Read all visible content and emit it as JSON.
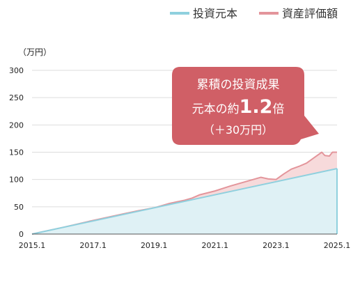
{
  "colors": {
    "principal_line": "#8fd0de",
    "principal_fill": "#dff1f5",
    "value_line": "#e3959b",
    "value_fill": "#f7dadb",
    "callout_bg": "#d05f66",
    "grid": "#dddddd",
    "axis": "#555555"
  },
  "chart_data": {
    "type": "area",
    "unit_label": "（万円）",
    "legend_placement": "top-right",
    "xlim": [
      2015.0,
      2025.0
    ],
    "ylim": [
      0,
      300
    ],
    "y_ticks": [
      0,
      50,
      100,
      150,
      200,
      250,
      300
    ],
    "x_ticks": [
      {
        "value": 2015.0,
        "label": "2015.1"
      },
      {
        "value": 2017.0,
        "label": "2017.1"
      },
      {
        "value": 2019.0,
        "label": "2019.1"
      },
      {
        "value": 2021.0,
        "label": "2021.1"
      },
      {
        "value": 2023.0,
        "label": "2023.1"
      },
      {
        "value": 2025.0,
        "label": "2025.1"
      }
    ],
    "grid": true,
    "series": [
      {
        "name": "投資元本",
        "color": "#8fd0de",
        "x": [
          2015.0,
          2025.0
        ],
        "values": [
          0,
          120
        ]
      },
      {
        "name": "資産評価額",
        "color": "#e3959b",
        "x": [
          2015.0,
          2016.0,
          2017.0,
          2017.5,
          2018.0,
          2018.5,
          2019.0,
          2019.5,
          2020.0,
          2020.25,
          2020.5,
          2021.0,
          2021.5,
          2022.0,
          2022.25,
          2022.5,
          2022.75,
          2023.0,
          2023.25,
          2023.5,
          2023.75,
          2024.0,
          2024.25,
          2024.5,
          2024.6,
          2024.75,
          2024.85,
          2025.0
        ],
        "values": [
          0,
          12,
          25,
          31,
          37,
          43,
          48,
          56,
          62,
          66,
          72,
          79,
          88,
          96,
          100,
          104,
          101,
          100,
          110,
          119,
          124,
          130,
          140,
          150,
          144,
          143,
          150,
          150
        ]
      }
    ],
    "annotation": {
      "line1": "累積の投資成果",
      "line2_prefix": "元本の約",
      "line2_value": "1.2",
      "line2_suffix": "倍",
      "line3": "（＋30万円）"
    }
  }
}
